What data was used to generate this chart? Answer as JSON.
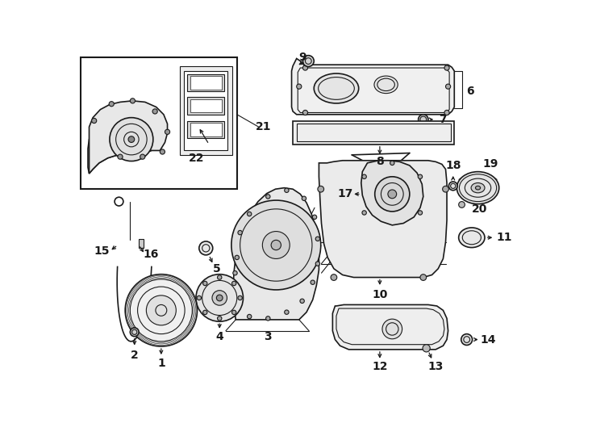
{
  "bg": "#ffffff",
  "lc": "#1a1a1a",
  "fig_w": 7.34,
  "fig_h": 5.4,
  "dpi": 100
}
